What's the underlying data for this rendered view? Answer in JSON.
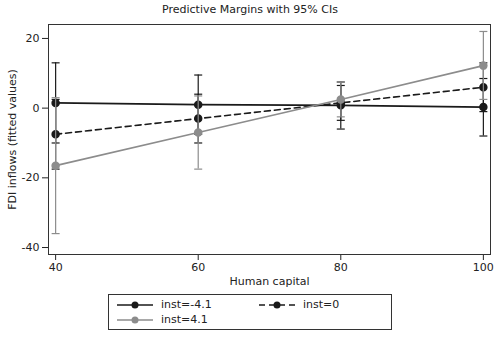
{
  "chart_data": {
    "type": "line",
    "title": "Predictive Margins with 95% CIs",
    "x_label": "Human capital",
    "y_label": "FDI inflows (fitted values)",
    "x": [
      40,
      60,
      80,
      100
    ],
    "series": [
      {
        "name": "inst=-4.1",
        "color": "#1a1a1a",
        "line_style": "solid",
        "marker": "circle",
        "values": [
          1.5,
          1.0,
          0.8,
          0.3
        ],
        "ci_low": [
          -10,
          -7.5,
          -6,
          -8
        ],
        "ci_high": [
          13,
          9.5,
          7.5,
          8.5
        ]
      },
      {
        "name": "inst=0",
        "color": "#1a1a1a",
        "line_style": "dashed",
        "marker": "circle",
        "values": [
          -7.5,
          -3,
          1.5,
          6
        ],
        "ci_low": [
          -17.5,
          -10,
          -3.5,
          -1
        ],
        "ci_high": [
          2.5,
          4,
          6.5,
          13
        ]
      },
      {
        "name": "inst=4.1",
        "color": "#8c8c8c",
        "line_style": "solid",
        "marker": "circle",
        "values": [
          -16.5,
          -7,
          2.5,
          12.2
        ],
        "ci_low": [
          -36,
          -17.5,
          -2.5,
          2.5
        ],
        "ci_high": [
          3,
          3.5,
          7.5,
          22
        ]
      }
    ],
    "xlim": [
      39,
      101
    ],
    "xticks": [
      40,
      60,
      80,
      100
    ],
    "ylim": [
      -42,
      24
    ],
    "yticks": [
      -40,
      -20,
      0,
      20
    ],
    "grid": false,
    "legend": "bottom"
  }
}
